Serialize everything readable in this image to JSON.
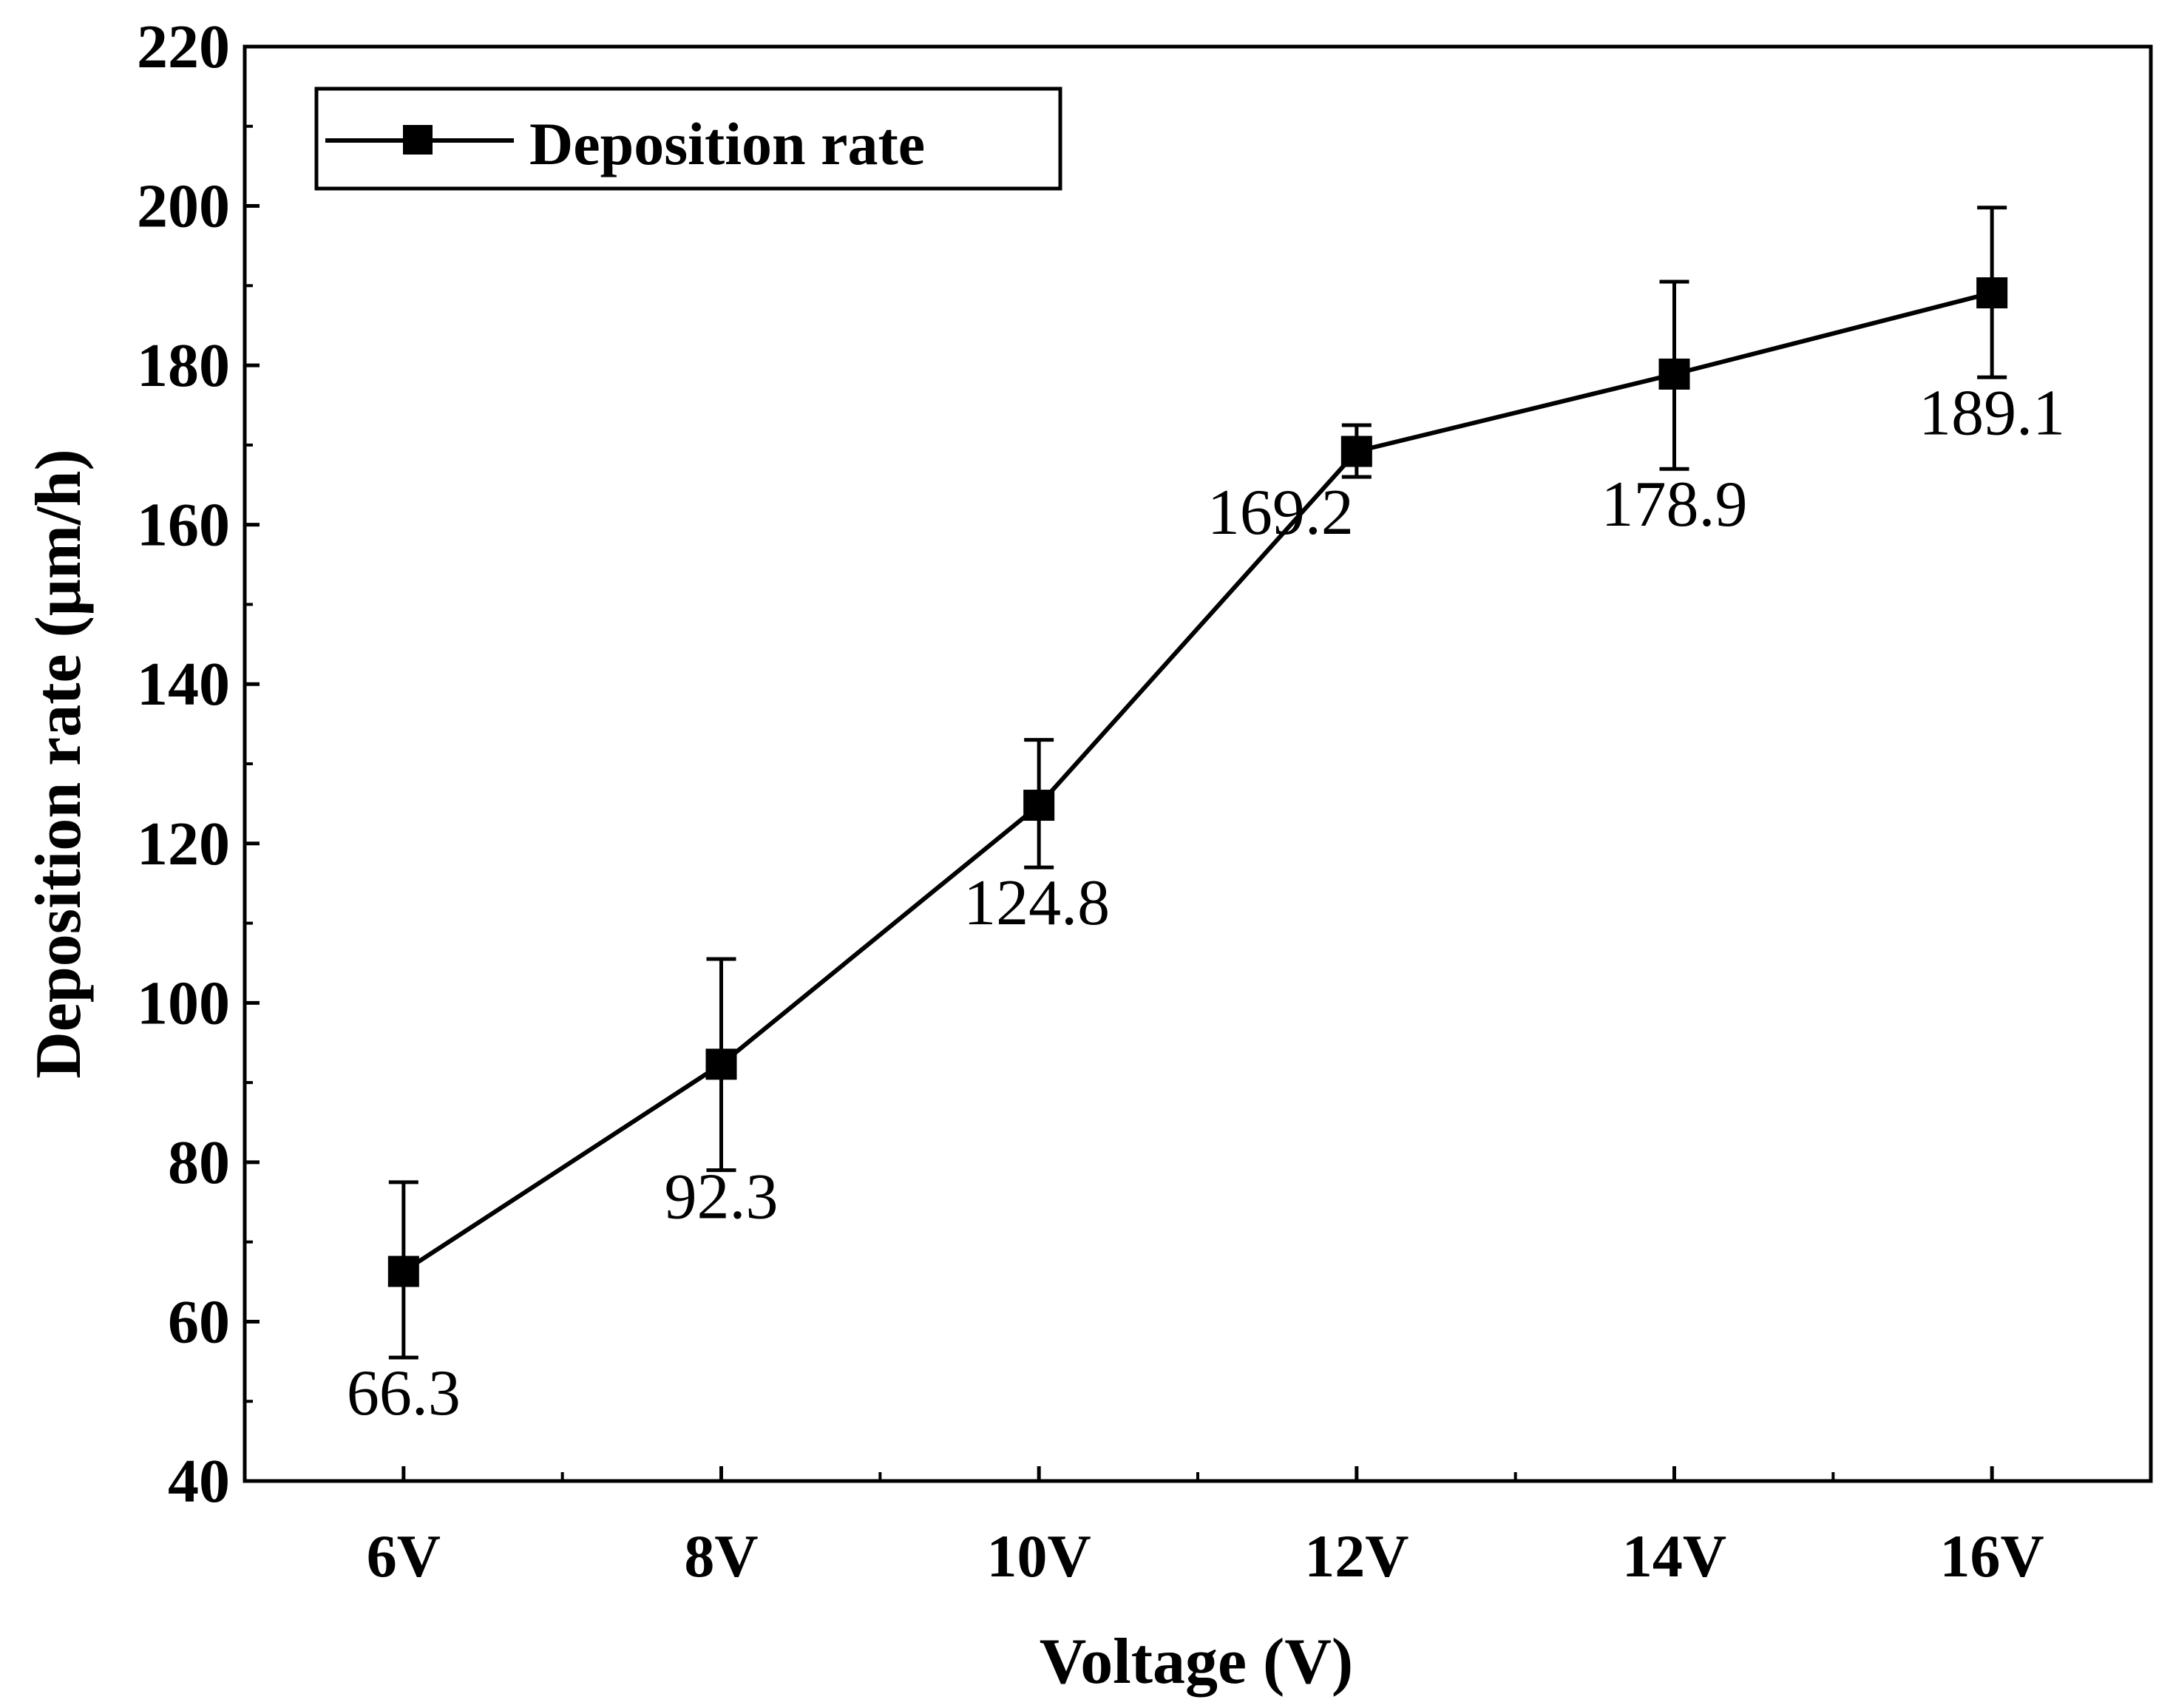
{
  "chart_data": {
    "type": "line",
    "categories": [
      "6V",
      "8V",
      "10V",
      "12V",
      "14V",
      "16V"
    ],
    "x": [
      6,
      8,
      10,
      12,
      14,
      16
    ],
    "series": [
      {
        "name": "Deposition rate",
        "values": [
          66.3,
          92.3,
          124.8,
          169.2,
          178.9,
          189.1
        ],
        "error_low": [
          55.5,
          79.0,
          117.0,
          166.0,
          167.0,
          178.5
        ],
        "error_high": [
          77.5,
          105.5,
          133.0,
          172.5,
          190.5,
          199.8
        ],
        "data_labels": [
          "66.3",
          "92.3",
          "124.8",
          "169.2",
          "178.9",
          "189.1"
        ],
        "marker": "square",
        "color": "#000000"
      }
    ],
    "title": "",
    "xlabel": "Voltage (V)",
    "ylabel": "Deposition rate (μm/h)",
    "xlim": [
      5,
      17
    ],
    "ylim": [
      40,
      220
    ],
    "yticks": [
      40,
      60,
      80,
      100,
      120,
      140,
      160,
      180,
      200,
      220
    ],
    "ytick_labels": [
      "40",
      "60",
      "80",
      "100",
      "120",
      "140",
      "160",
      "180",
      "200",
      "220"
    ],
    "grid": false,
    "legend": {
      "position": "top-left",
      "entries": [
        "Deposition rate"
      ]
    }
  }
}
